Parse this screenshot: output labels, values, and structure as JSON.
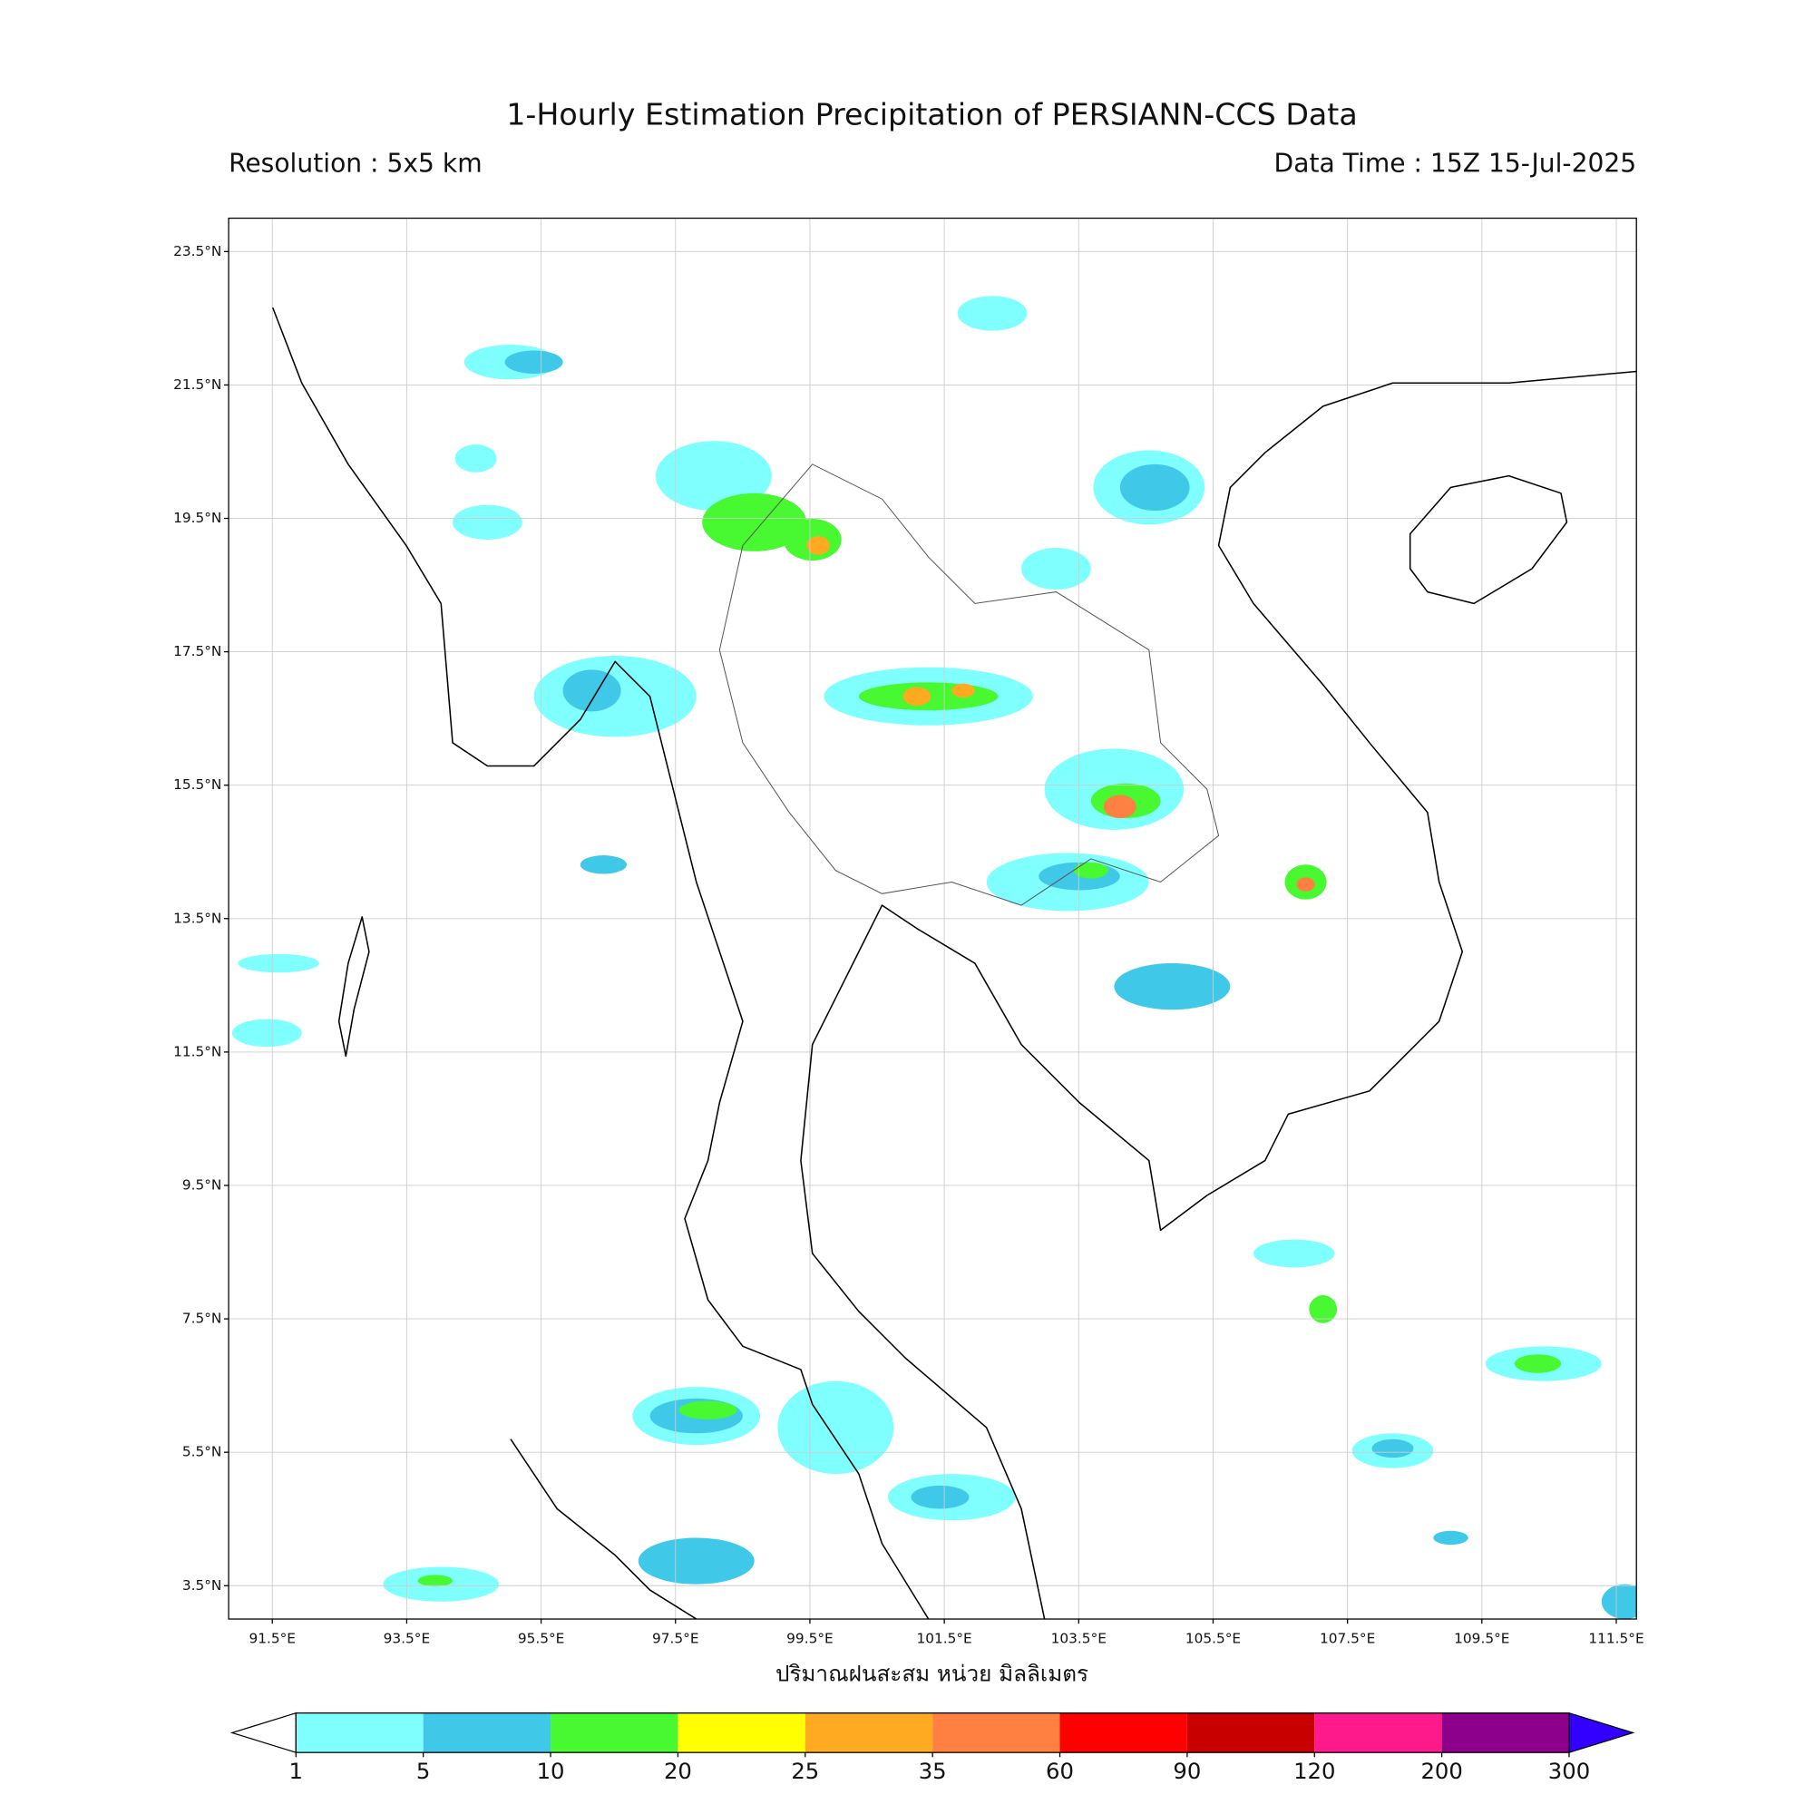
{
  "chart_data": {
    "type": "map",
    "title": "1-Hourly Estimation Precipitation of PERSIANN-CCS Data",
    "subtitle_left": "Resolution : 5x5 km",
    "subtitle_right": "Data Time : 15Z 15-Jul-2025",
    "xlabel": "ปริมาณฝนสะสม หน่วย มิลลิเมตร",
    "xlim": [
      90.85,
      111.8
    ],
    "ylim": [
      3,
      24
    ],
    "xticks": [
      {
        "value": 91.5,
        "label": "91.5°E"
      },
      {
        "value": 93.5,
        "label": "93.5°E"
      },
      {
        "value": 95.5,
        "label": "95.5°E"
      },
      {
        "value": 97.5,
        "label": "97.5°E"
      },
      {
        "value": 99.5,
        "label": "99.5°E"
      },
      {
        "value": 101.5,
        "label": "101.5°E"
      },
      {
        "value": 103.5,
        "label": "103.5°E"
      },
      {
        "value": 105.5,
        "label": "105.5°E"
      },
      {
        "value": 107.5,
        "label": "107.5°E"
      },
      {
        "value": 109.5,
        "label": "109.5°E"
      },
      {
        "value": 111.5,
        "label": "111.5°E"
      }
    ],
    "yticks": [
      {
        "value": 3.5,
        "label": "3.5°N"
      },
      {
        "value": 5.5,
        "label": "5.5°N"
      },
      {
        "value": 7.5,
        "label": "7.5°N"
      },
      {
        "value": 9.5,
        "label": "9.5°N"
      },
      {
        "value": 11.5,
        "label": "11.5°N"
      },
      {
        "value": 13.5,
        "label": "13.5°N"
      },
      {
        "value": 15.5,
        "label": "15.5°N"
      },
      {
        "value": 17.5,
        "label": "17.5°N"
      },
      {
        "value": 19.5,
        "label": "19.5°N"
      },
      {
        "value": 21.5,
        "label": "21.5°N"
      },
      {
        "value": 23.5,
        "label": "23.5°N"
      }
    ],
    "grid": true,
    "colorbar": {
      "bounds": [
        1,
        5,
        10,
        20,
        25,
        35,
        60,
        90,
        120,
        200,
        300
      ],
      "colors": [
        "#80ffff",
        "#40c8e8",
        "#48f830",
        "#ffff00",
        "#ffaa20",
        "#ff8040",
        "#ff0000",
        "#c80000",
        "#ff1a8c",
        "#8c008c"
      ],
      "under_color": "#ffffff",
      "over_color": "#3300ff"
    }
  }
}
